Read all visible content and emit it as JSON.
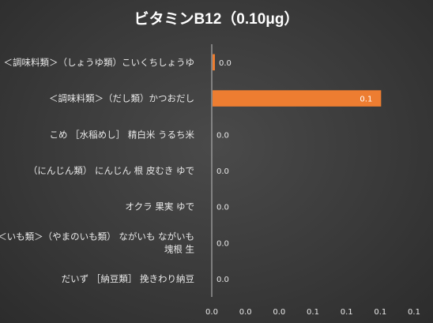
{
  "chart_data": {
    "type": "bar",
    "orientation": "horizontal",
    "title": "ビタミンB12（0.10μg）",
    "categories": [
      [
        "＜調味料類＞（しょうゆ類）こいくちしょうゆ"
      ],
      [
        "＜調味料類＞（だし類）かつおだし"
      ],
      [
        "こめ ［水稲めし］ 精白米 うるち米"
      ],
      [
        "（にんじん類） にんじん 根 皮むき ゆで"
      ],
      [
        "オクラ 果実 ゆで"
      ],
      [
        "＜いも類＞（やまのいも類） ながいも ながいも",
        "塊根 生"
      ],
      [
        "だいず ［納豆類］ 挽きわり納豆"
      ]
    ],
    "values": [
      0.0,
      0.1,
      0.0,
      0.0,
      0.0,
      0.0,
      0.0
    ],
    "plotted_values": [
      0.0014,
      0.1,
      0,
      0,
      0,
      0,
      0
    ],
    "data_labels": [
      "0.0",
      "0.1",
      "0.0",
      "0.0",
      "0.0",
      "0.0",
      "0.0"
    ],
    "xlim": [
      0,
      0.12
    ],
    "x_tick_values": [
      0,
      0.02,
      0.04,
      0.06,
      0.08,
      0.1,
      0.12
    ],
    "x_tick_labels": [
      "0.0",
      "0.0",
      "0.0",
      "0.1",
      "0.1",
      "0.1",
      "0.1"
    ],
    "grid": false,
    "legend": "none",
    "bar_color": "#ED7D31",
    "text_color": "#E8E8E8",
    "background_color": "#3a3a3a"
  }
}
